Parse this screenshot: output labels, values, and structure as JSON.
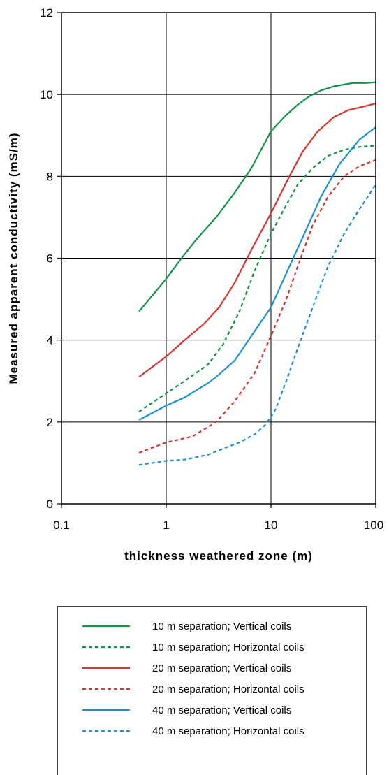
{
  "chart_data": {
    "type": "line",
    "xlabel": "thickness weathered zone (m)",
    "ylabel": "Measured apparent conductivity (mS/m)",
    "x_scale": "log",
    "xlim": [
      0.1,
      100
    ],
    "ylim": [
      0,
      12
    ],
    "x_ticks": [
      0.1,
      1,
      10,
      100
    ],
    "x_tick_labels": [
      "0.1",
      "1",
      "10",
      "100"
    ],
    "y_ticks": [
      0,
      2,
      4,
      6,
      8,
      10,
      12
    ],
    "y_tick_labels": [
      "0",
      "2",
      "4",
      "6",
      "8",
      "10",
      "12"
    ],
    "grid": true,
    "legend_position": "bottom",
    "series": [
      {
        "name": "10 m  separation; Vertical coils",
        "color": "#109444",
        "style": "solid",
        "x": [
          0.55,
          0.8,
          1,
          1.4,
          2,
          3,
          4.5,
          6.5,
          10,
          14,
          18,
          23,
          30,
          40,
          60,
          80,
          100
        ],
        "y": [
          4.7,
          5.2,
          5.5,
          6.0,
          6.5,
          7.0,
          7.6,
          8.2,
          9.1,
          9.5,
          9.75,
          9.95,
          10.1,
          10.2,
          10.28,
          10.28,
          10.3
        ]
      },
      {
        "name": "10 m  separation; Horizontal coils",
        "color": "#109444",
        "style": "dashed",
        "x": [
          0.55,
          1,
          1.5,
          2.5,
          3.5,
          5,
          7,
          10,
          14,
          18,
          25,
          35,
          50,
          70,
          100
        ],
        "y": [
          2.25,
          2.7,
          3.0,
          3.4,
          3.9,
          4.7,
          5.7,
          6.6,
          7.3,
          7.8,
          8.2,
          8.5,
          8.65,
          8.72,
          8.75
        ]
      },
      {
        "name": "20 m  separation; Vertical coils",
        "color": "#d9342b",
        "style": "solid",
        "x": [
          0.55,
          1,
          1.5,
          2.3,
          3.2,
          4.5,
          6.5,
          10,
          15,
          20,
          28,
          40,
          55,
          75,
          100
        ],
        "y": [
          3.1,
          3.6,
          4.0,
          4.4,
          4.8,
          5.4,
          6.2,
          7.1,
          8.0,
          8.6,
          9.1,
          9.45,
          9.62,
          9.7,
          9.78
        ]
      },
      {
        "name": "20 m  separation; Horizontal coils",
        "color": "#d9342b",
        "style": "dashed",
        "x": [
          0.55,
          1,
          1.8,
          3,
          4.5,
          7,
          10,
          14,
          18,
          25,
          35,
          50,
          70,
          100
        ],
        "y": [
          1.25,
          1.5,
          1.65,
          2.0,
          2.5,
          3.2,
          4.1,
          5.0,
          5.8,
          6.8,
          7.5,
          8.0,
          8.25,
          8.4
        ]
      },
      {
        "name": "40 m  separation; Vertical coils",
        "color": "#1e8ed6",
        "style": "solid",
        "x": [
          0.55,
          1,
          1.5,
          2.5,
          3,
          4.5,
          6.5,
          10,
          15,
          20,
          30,
          45,
          70,
          100
        ],
        "y": [
          2.05,
          2.4,
          2.6,
          2.95,
          3.1,
          3.5,
          4.1,
          4.8,
          5.8,
          6.5,
          7.5,
          8.3,
          8.9,
          9.2
        ]
      },
      {
        "name": "40 m  separation; Horizontal coils",
        "color": "#1e8ed6",
        "style": "dashed",
        "x": [
          0.55,
          1,
          1.5,
          2.5,
          3.5,
          5,
          7,
          9,
          11,
          14,
          18,
          25,
          35,
          50,
          70,
          100
        ],
        "y": [
          0.95,
          1.05,
          1.08,
          1.2,
          1.35,
          1.5,
          1.7,
          1.95,
          2.3,
          3.0,
          3.8,
          4.8,
          5.8,
          6.6,
          7.2,
          7.8
        ]
      }
    ]
  }
}
